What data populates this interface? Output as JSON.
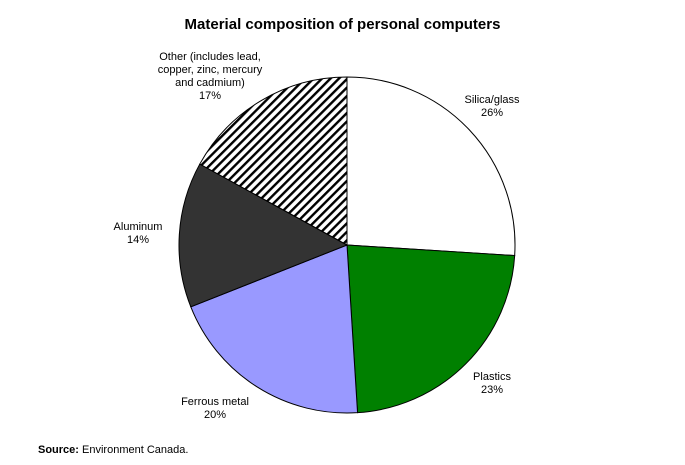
{
  "chart_data": {
    "type": "pie",
    "title": "Material composition of personal computers",
    "slices": [
      {
        "label": [
          "Silica/glass"
        ],
        "percent_label": "26%",
        "value": 26,
        "fill": "#ffffff",
        "pattern": "none"
      },
      {
        "label": [
          "Plastics"
        ],
        "percent_label": "23%",
        "value": 23,
        "fill": "#008000",
        "pattern": "none"
      },
      {
        "label": [
          "Ferrous metal"
        ],
        "percent_label": "20%",
        "value": 20,
        "fill": "#9999ff",
        "pattern": "none"
      },
      {
        "label": [
          "Aluminum"
        ],
        "percent_label": "14%",
        "value": 14,
        "fill": "#333333",
        "pattern": "none"
      },
      {
        "label": [
          "Other (includes lead,",
          "copper, zinc, mercury",
          "and cadmium)"
        ],
        "percent_label": "17%",
        "value": 17,
        "fill": "#ffffff",
        "pattern": "diagonal-stripes"
      }
    ],
    "start": "12 o'clock",
    "direction": "clockwise",
    "legend": "none",
    "source_label": "Source:",
    "source_text": "Environment Canada."
  }
}
